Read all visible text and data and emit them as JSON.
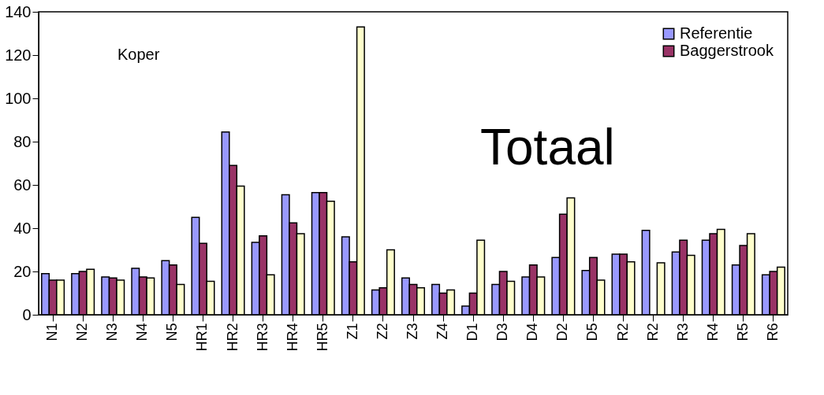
{
  "chart_data": {
    "type": "bar",
    "categories": [
      "N1",
      "N2",
      "N3",
      "N4",
      "N5",
      "HR1",
      "HR2",
      "HR3",
      "HR4",
      "HR5",
      "Z1",
      "Z2",
      "Z3",
      "Z4",
      "D1",
      "D3",
      "D4",
      "D2",
      "D5",
      "R2",
      "R2",
      "R3",
      "R4",
      "R5",
      "R6"
    ],
    "series": [
      {
        "name": "Referentie",
        "color": "#9999ff",
        "values": [
          19,
          19,
          17.5,
          21.5,
          25,
          45,
          84.5,
          33.5,
          55.5,
          56.5,
          36,
          11.5,
          17,
          14,
          4,
          14,
          17.5,
          26.5,
          20.5,
          28,
          39,
          29,
          34.5,
          23,
          18.5
        ]
      },
      {
        "name": "Baggerstrook",
        "color": "#993366",
        "values": [
          16,
          20,
          17,
          17.5,
          23,
          33,
          69,
          36.5,
          42.5,
          56.5,
          24.5,
          12.5,
          14,
          10,
          10,
          20,
          23,
          46.5,
          26.5,
          28,
          null,
          34.5,
          37.5,
          32,
          20
        ]
      },
      {
        "color": "#ffffcc",
        "values": [
          16,
          21,
          16,
          17,
          14,
          15.5,
          59.5,
          18.5,
          37.5,
          52.5,
          133,
          30,
          12.5,
          11.5,
          34.5,
          15.5,
          17.5,
          54,
          16,
          24.5,
          24,
          27.5,
          39.5,
          37.5,
          22
        ]
      }
    ],
    "ylim": [
      0,
      140
    ],
    "yticks": [
      0,
      20,
      40,
      60,
      80,
      100,
      120,
      140
    ],
    "annotations": [
      "Koper",
      "Totaal"
    ],
    "legend": "top right",
    "grid": false
  }
}
